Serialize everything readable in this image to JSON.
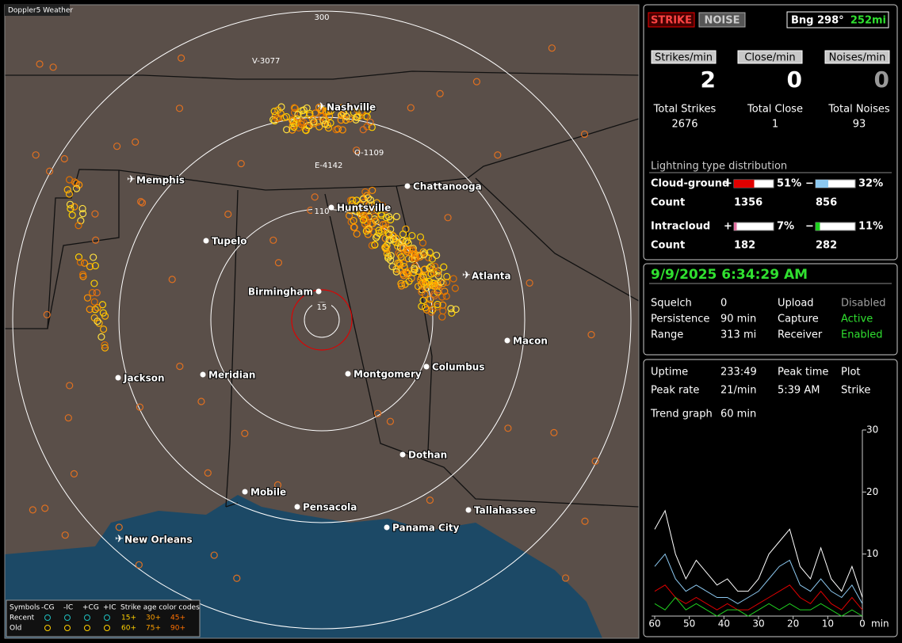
{
  "map": {
    "title": "Doppler5 Weather",
    "range_labels": [
      "300",
      "110",
      "15"
    ],
    "cities": [
      "Nashville",
      "Memphis",
      "Chattanooga",
      "Huntsville",
      "Tupelo",
      "Birmingham",
      "Atlanta",
      "Macon",
      "Jackson",
      "Meridian",
      "Montgomery",
      "Columbus",
      "Dothan",
      "Mobile",
      "Pensacola",
      "Panama City",
      "Tallahassee",
      "New Orleans"
    ],
    "storm_labels": [
      "V-3077",
      "Q-1109",
      "E-4142"
    ],
    "legend": {
      "headers": [
        "Symbols",
        "-CG",
        "-IC",
        "+CG",
        "+IC",
        "Strike age color codes"
      ],
      "rows": [
        {
          "label": "Recent",
          "ages": [
            "15+",
            "30+",
            "45+"
          ]
        },
        {
          "label": "Old",
          "ages": [
            "60+",
            "75+",
            "90+"
          ]
        }
      ]
    }
  },
  "status": {
    "buttons": [
      "STRIKE",
      "NOISE"
    ],
    "bearing": "Bng 298°",
    "distance": "252mi",
    "rates": [
      {
        "label": "Strikes/min",
        "value": 2
      },
      {
        "label": "Close/min",
        "value": 0
      },
      {
        "label": "Noises/min",
        "value": 0
      }
    ],
    "totals": [
      {
        "label": "Total Strikes",
        "value": 2676
      },
      {
        "label": "Total Close",
        "value": 1
      },
      {
        "label": "Total Noises",
        "value": 93
      }
    ],
    "distribution": {
      "title": "Lightning type distribution",
      "count_label": "Count",
      "types": [
        {
          "name": "Cloud-ground",
          "pos": {
            "sign": "+",
            "percent": 51,
            "percent_label": "51%",
            "count": 1356,
            "color": "#e00000"
          },
          "neg": {
            "sign": "−",
            "percent": 32,
            "percent_label": "32%",
            "count": 856,
            "color": "#8cc8f0"
          }
        },
        {
          "name": "Intracloud",
          "pos": {
            "sign": "+",
            "percent": 7,
            "percent_label": "7%",
            "count": 182,
            "color": "#e070a0"
          },
          "neg": {
            "sign": "−",
            "percent": 11,
            "percent_label": "11%",
            "count": 282,
            "color": "#20d020"
          }
        }
      ]
    }
  },
  "settings": {
    "datetime": "9/9/2025 6:34:29 AM",
    "rows": [
      {
        "label": "Squelch",
        "value": "0",
        "label2": "Upload",
        "value2": "Disabled",
        "color2": "#a0a0a0"
      },
      {
        "label": "Persistence",
        "value": "90 min",
        "label2": "Capture",
        "value2": "Active",
        "color2": "#30e030"
      },
      {
        "label": "Range",
        "value": "313 mi",
        "label2": "Receiver",
        "value2": "Enabled",
        "color2": "#30e030"
      }
    ]
  },
  "stats": {
    "rows": [
      [
        "Uptime",
        "233:49",
        "Peak time",
        "Plot"
      ],
      [
        "Peak rate",
        "21/min",
        "5:39 AM",
        "Strike"
      ]
    ],
    "trend_label": "Trend graph",
    "trend_value": "60 min"
  },
  "chart_data": {
    "type": "line",
    "x": [
      60,
      57,
      54,
      51,
      48,
      45,
      42,
      39,
      36,
      33,
      30,
      27,
      24,
      21,
      18,
      15,
      12,
      9,
      6,
      3,
      0
    ],
    "xlim": [
      60,
      0
    ],
    "xticks": [
      60,
      50,
      40,
      30,
      20,
      10,
      0
    ],
    "xlabel": "min",
    "ylim": [
      0,
      30
    ],
    "yticks": [
      10,
      20,
      30
    ],
    "series": [
      {
        "color": "#ffffff",
        "values": [
          14,
          17,
          10,
          6,
          9,
          7,
          5,
          6,
          4,
          4,
          6,
          10,
          12,
          14,
          8,
          6,
          11,
          6,
          4,
          8,
          3
        ]
      },
      {
        "color": "#8cc8f0",
        "values": [
          8,
          10,
          6,
          4,
          5,
          4,
          3,
          3,
          2,
          3,
          4,
          6,
          8,
          9,
          5,
          4,
          6,
          4,
          3,
          5,
          2
        ]
      },
      {
        "color": "#e00000",
        "values": [
          4,
          5,
          3,
          2,
          3,
          2,
          1,
          2,
          1,
          1,
          2,
          3,
          4,
          5,
          3,
          2,
          4,
          2,
          1,
          3,
          1
        ]
      },
      {
        "color": "#20d020",
        "values": [
          2,
          1,
          3,
          1,
          2,
          1,
          0,
          1,
          1,
          0,
          1,
          2,
          1,
          2,
          1,
          1,
          2,
          1,
          0,
          1,
          0
        ]
      }
    ]
  }
}
